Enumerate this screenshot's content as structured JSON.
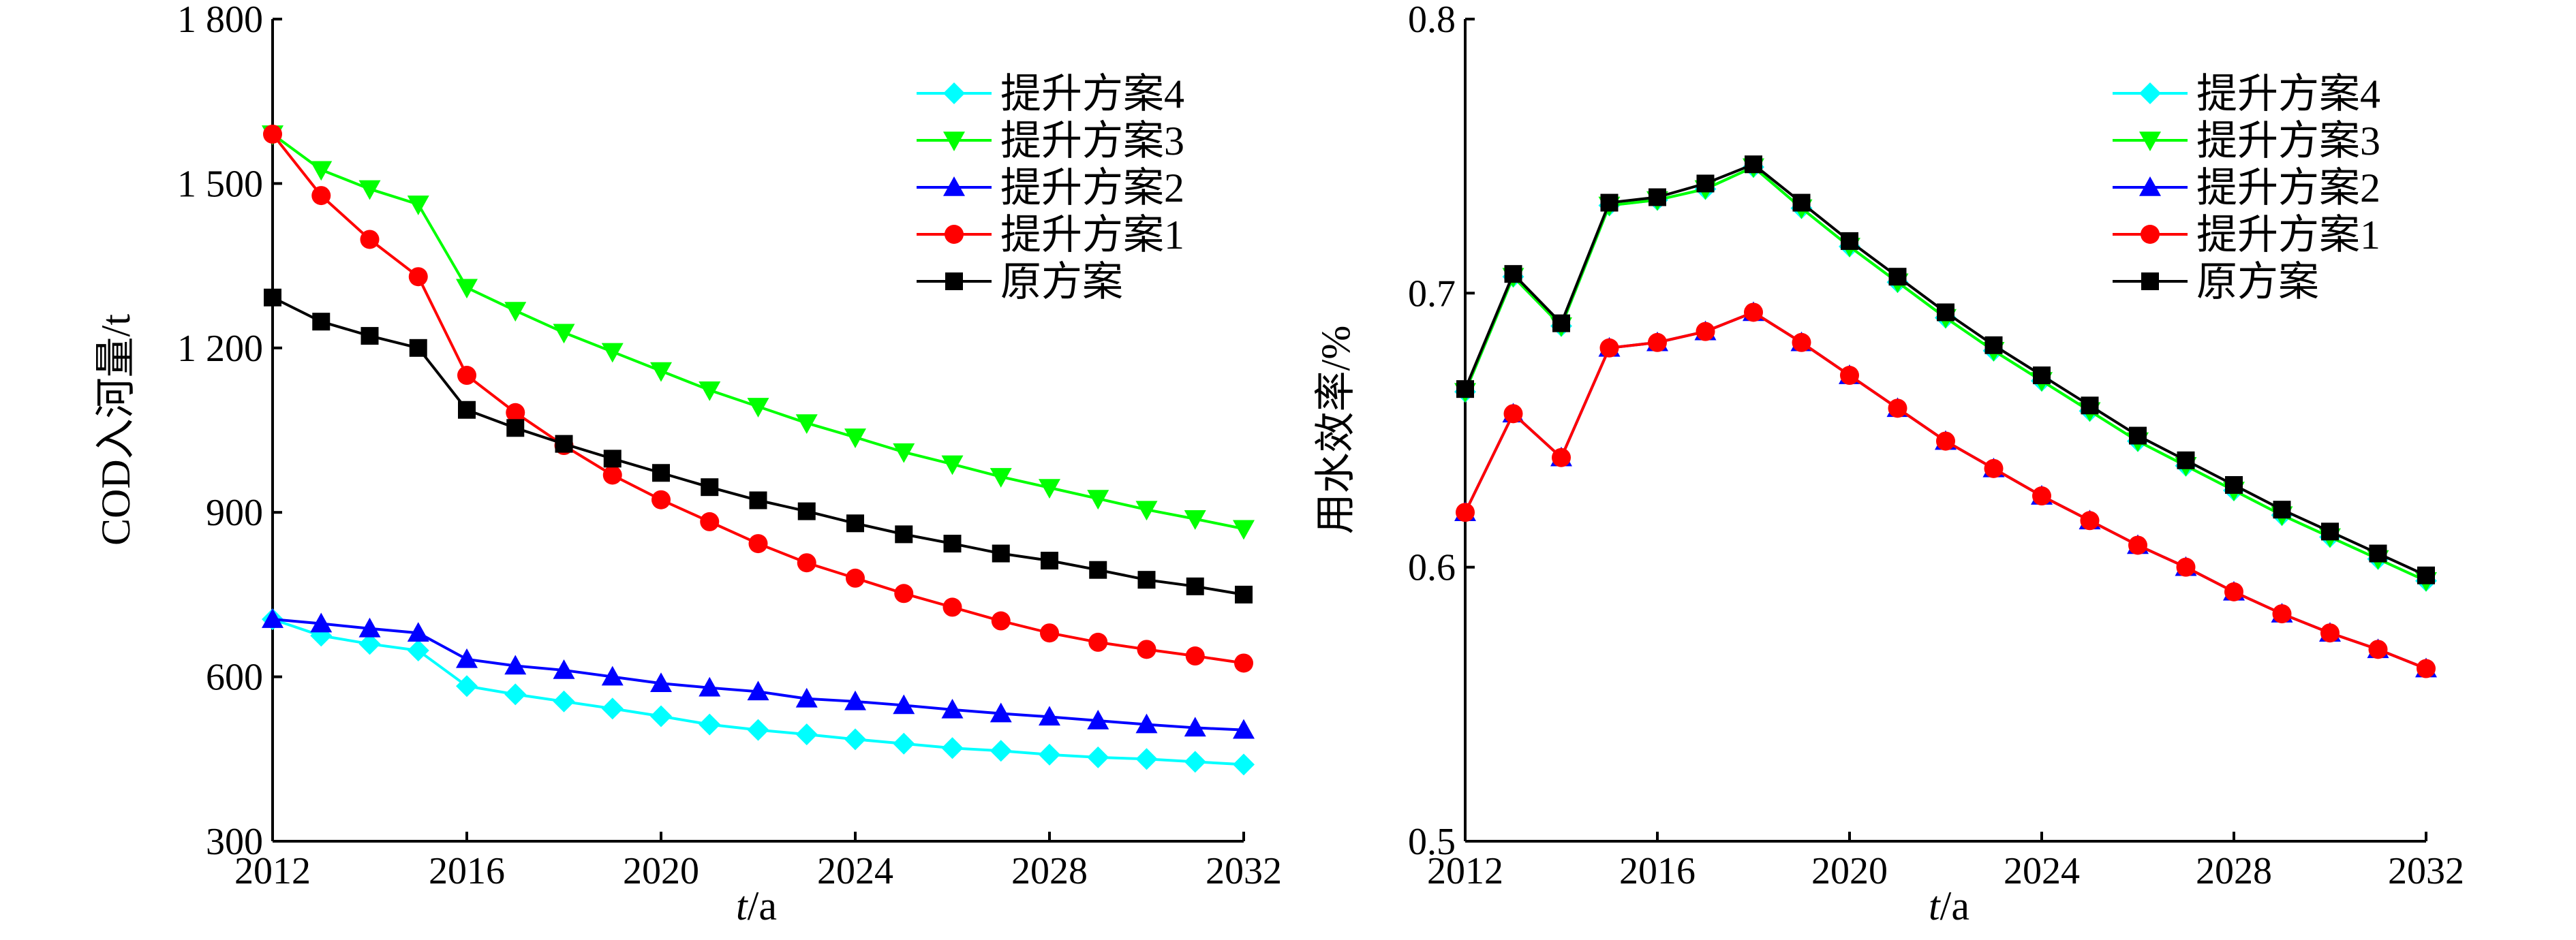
{
  "chart_data": [
    {
      "type": "line",
      "xlabel": "t/a",
      "xlabel_italic_part": "t",
      "xlabel_rest": "/a",
      "ylabel": "COD入河量/t",
      "xlim": [
        2012,
        2032
      ],
      "ylim": [
        300,
        1800
      ],
      "xticks": [
        2012,
        2016,
        2020,
        2024,
        2028,
        2032
      ],
      "xtick_labels": [
        "2012",
        "2016",
        "2020",
        "2024",
        "2028",
        "2032"
      ],
      "yticks": [
        300,
        600,
        900,
        1200,
        1500,
        1800
      ],
      "ytick_labels": [
        "300",
        "600",
        "900",
        "1 200",
        "1 500",
        "1 800"
      ],
      "grid": false,
      "legend_position": "top-right",
      "x": [
        2012,
        2013,
        2014,
        2015,
        2016,
        2017,
        2018,
        2019,
        2020,
        2021,
        2022,
        2023,
        2024,
        2025,
        2026,
        2027,
        2028,
        2029,
        2030,
        2031,
        2032
      ],
      "series": [
        {
          "name": "提升方案4",
          "color": "#00FFFF",
          "marker": "diamond",
          "values": [
            705,
            675,
            660,
            648,
            583,
            568,
            555,
            542,
            528,
            513,
            503,
            495,
            486,
            478,
            470,
            465,
            458,
            453,
            450,
            445,
            440
          ]
        },
        {
          "name": "提升方案3",
          "color": "#00FF00",
          "marker": "triangle-down",
          "values": [
            1590,
            1525,
            1490,
            1462,
            1310,
            1268,
            1228,
            1193,
            1158,
            1123,
            1093,
            1063,
            1037,
            1010,
            988,
            965,
            945,
            925,
            905,
            888,
            870
          ]
        },
        {
          "name": "提升方案2",
          "color": "#0000FF",
          "marker": "triangle-up",
          "values": [
            705,
            697,
            688,
            680,
            632,
            620,
            612,
            600,
            588,
            580,
            573,
            560,
            555,
            548,
            540,
            533,
            527,
            520,
            513,
            507,
            503
          ]
        },
        {
          "name": "提升方案1",
          "color": "#FF0000",
          "marker": "circle",
          "values": [
            1590,
            1478,
            1398,
            1330,
            1150,
            1082,
            1022,
            968,
            923,
            883,
            843,
            808,
            780,
            752,
            727,
            702,
            680,
            663,
            650,
            638,
            625
          ]
        },
        {
          "name": "原方案",
          "color": "#000000",
          "marker": "square",
          "values": [
            1292,
            1248,
            1222,
            1200,
            1087,
            1054,
            1025,
            998,
            972,
            946,
            922,
            902,
            880,
            860,
            843,
            825,
            812,
            795,
            777,
            765,
            750
          ]
        }
      ]
    },
    {
      "type": "line",
      "xlabel": "t/a",
      "xlabel_italic_part": "t",
      "xlabel_rest": "/a",
      "ylabel": "用水效率/%",
      "xlim": [
        2012,
        2032
      ],
      "ylim": [
        0.5,
        0.8
      ],
      "xticks": [
        2012,
        2016,
        2020,
        2024,
        2028,
        2032
      ],
      "xtick_labels": [
        "2012",
        "2016",
        "2020",
        "2024",
        "2028",
        "2032"
      ],
      "yticks": [
        0.5,
        0.6,
        0.7,
        0.8
      ],
      "ytick_labels": [
        "0.5",
        "0.6",
        "0.7",
        "0.8"
      ],
      "grid": false,
      "legend_position": "top-right",
      "x": [
        2012,
        2013,
        2014,
        2015,
        2016,
        2017,
        2018,
        2019,
        2020,
        2021,
        2022,
        2023,
        2024,
        2025,
        2026,
        2027,
        2028,
        2029,
        2030,
        2031,
        2032
      ],
      "series": [
        {
          "name": "提升方案4",
          "color": "#00FFFF",
          "marker": "diamond",
          "values": [
            0.664,
            0.706,
            0.688,
            0.732,
            0.734,
            0.738,
            0.746,
            0.731,
            0.717,
            0.704,
            0.691,
            0.679,
            0.668,
            0.657,
            0.646,
            0.637,
            0.628,
            0.619,
            0.611,
            0.603,
            0.595
          ]
        },
        {
          "name": "提升方案3",
          "color": "#00FF00",
          "marker": "triangle-down",
          "values": [
            0.664,
            0.706,
            0.688,
            0.732,
            0.734,
            0.738,
            0.746,
            0.731,
            0.717,
            0.704,
            0.691,
            0.679,
            0.668,
            0.657,
            0.646,
            0.637,
            0.628,
            0.619,
            0.611,
            0.603,
            0.595
          ]
        },
        {
          "name": "提升方案2",
          "color": "#0000FF",
          "marker": "triangle-up",
          "values": [
            0.62,
            0.656,
            0.64,
            0.68,
            0.682,
            0.686,
            0.693,
            0.682,
            0.67,
            0.658,
            0.646,
            0.636,
            0.626,
            0.617,
            0.608,
            0.6,
            0.591,
            0.583,
            0.576,
            0.57,
            0.563
          ]
        },
        {
          "name": "提升方案1",
          "color": "#FF0000",
          "marker": "circle",
          "values": [
            0.62,
            0.656,
            0.64,
            0.68,
            0.682,
            0.686,
            0.693,
            0.682,
            0.67,
            0.658,
            0.646,
            0.636,
            0.626,
            0.617,
            0.608,
            0.6,
            0.591,
            0.583,
            0.576,
            0.57,
            0.563
          ]
        },
        {
          "name": "原方案",
          "color": "#000000",
          "marker": "square",
          "values": [
            0.665,
            0.707,
            0.689,
            0.733,
            0.735,
            0.74,
            0.747,
            0.733,
            0.719,
            0.706,
            0.693,
            0.681,
            0.67,
            0.659,
            0.648,
            0.639,
            0.63,
            0.621,
            0.613,
            0.605,
            0.597
          ]
        }
      ]
    }
  ]
}
